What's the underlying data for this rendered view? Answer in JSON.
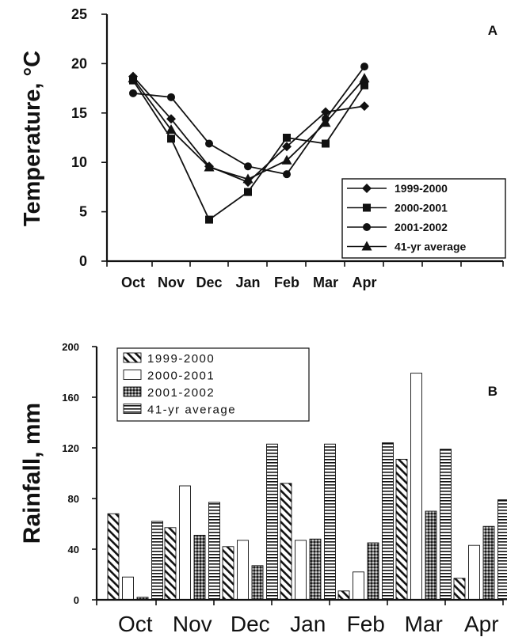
{
  "chart_data": [
    {
      "type": "line",
      "panel_label": "A",
      "ylabel": "Temperature, °C",
      "xlabel": "",
      "categories": [
        "Oct",
        "Nov",
        "Dec",
        "Jan",
        "Feb",
        "Mar",
        "Apr"
      ],
      "ylim": [
        0,
        25
      ],
      "yticks": [
        "0",
        "5",
        "10",
        "15",
        "20",
        "25"
      ],
      "legend_position": "bottom-right",
      "series": [
        {
          "name": "1999-2000",
          "marker": "diamond",
          "values": [
            18.7,
            14.4,
            9.6,
            8.0,
            11.6,
            15.1,
            15.7
          ]
        },
        {
          "name": "2000-2001",
          "marker": "square",
          "values": [
            18.3,
            12.4,
            4.2,
            7.0,
            12.5,
            11.9,
            17.8
          ]
        },
        {
          "name": "2001-2002",
          "marker": "circle",
          "values": [
            17.0,
            16.6,
            11.9,
            9.6,
            8.8,
            14.4,
            19.7
          ]
        },
        {
          "name": "41-yr average",
          "marker": "triangle",
          "values": [
            18.5,
            13.3,
            9.5,
            8.3,
            10.2,
            14.0,
            18.5
          ]
        }
      ]
    },
    {
      "type": "bar",
      "panel_label": "B",
      "ylabel": "Rainfall, mm",
      "xlabel": "",
      "categories": [
        "Oct",
        "Nov",
        "Dec",
        "Jan",
        "Feb",
        "Mar",
        "Apr"
      ],
      "ylim": [
        0,
        200
      ],
      "yticks": [
        "0",
        "40",
        "80",
        "120",
        "160",
        "200"
      ],
      "legend_position": "top-left",
      "series": [
        {
          "name": "1999-2000",
          "pattern": "diagonal",
          "values": [
            68,
            57,
            42,
            92,
            7,
            111,
            17
          ]
        },
        {
          "name": "2000-2001",
          "pattern": "white",
          "values": [
            18,
            90,
            47,
            47,
            22,
            179,
            43
          ]
        },
        {
          "name": "2001-2002",
          "pattern": "crosshatch",
          "values": [
            2,
            51,
            27,
            48,
            45,
            70,
            58
          ]
        },
        {
          "name": "41-yr average",
          "pattern": "horizontal",
          "values": [
            62,
            77,
            123,
            123,
            124,
            119,
            79
          ]
        }
      ]
    }
  ]
}
